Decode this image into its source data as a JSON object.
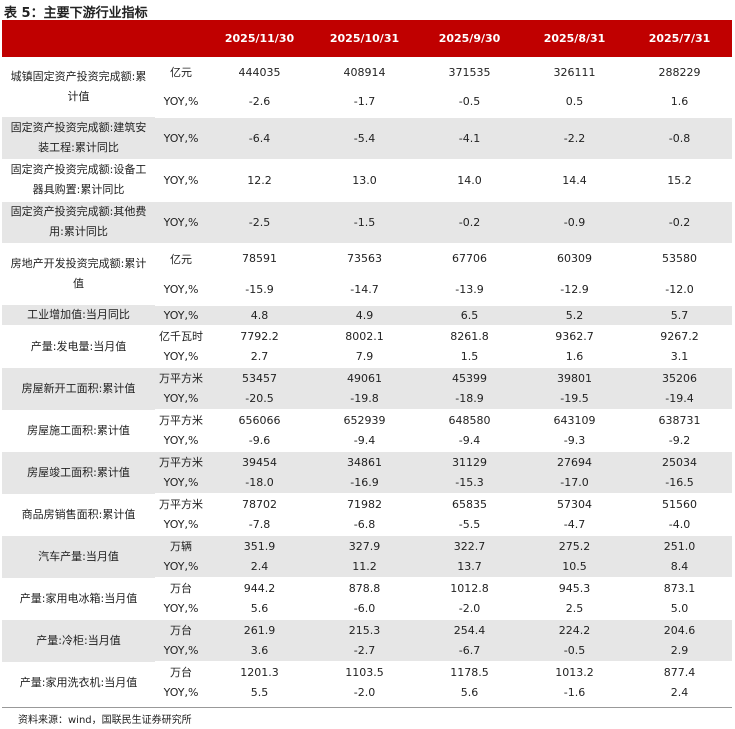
{
  "title": "表 5：主要下游行业指标",
  "table": {
    "columns": [
      "2025/11/30",
      "2025/10/31",
      "2025/9/30",
      "2025/8/31",
      "2025/7/31"
    ],
    "groups": [
      {
        "name": "城镇固定资产投资完成额:累计值",
        "rows": [
          {
            "unit": "亿元",
            "values": [
              "444035",
              "408914",
              "371535",
              "326111",
              "288229"
            ]
          },
          {
            "unit": "YOY,%",
            "values": [
              "-2.6",
              "-1.7",
              "-0.5",
              "0.5",
              "1.6"
            ]
          }
        ]
      },
      {
        "name": "固定资产投资完成额:建筑安装工程:累计同比",
        "rows": [
          {
            "unit": "YOY,%",
            "values": [
              "-6.4",
              "-5.4",
              "-4.1",
              "-2.2",
              "-0.8"
            ]
          }
        ]
      },
      {
        "name": "固定资产投资完成额:设备工器具购置:累计同比",
        "rows": [
          {
            "unit": "YOY,%",
            "values": [
              "12.2",
              "13.0",
              "14.0",
              "14.4",
              "15.2"
            ]
          }
        ]
      },
      {
        "name": "固定资产投资完成额:其他费用:累计同比",
        "rows": [
          {
            "unit": "YOY,%",
            "values": [
              "-2.5",
              "-1.5",
              "-0.2",
              "-0.9",
              "-0.2"
            ]
          }
        ]
      },
      {
        "name": "房地产开发投资完成额:累计值",
        "rows": [
          {
            "unit": "亿元",
            "values": [
              "78591",
              "73563",
              "67706",
              "60309",
              "53580"
            ]
          },
          {
            "unit": "YOY,%",
            "values": [
              "-15.9",
              "-14.7",
              "-13.9",
              "-12.9",
              "-12.0"
            ]
          }
        ]
      },
      {
        "name": "工业增加值:当月同比",
        "rows": [
          {
            "unit": "YOY,%",
            "values": [
              "4.8",
              "4.9",
              "6.5",
              "5.2",
              "5.7"
            ]
          }
        ]
      },
      {
        "name": "产量:发电量:当月值",
        "rows": [
          {
            "unit": "亿千瓦时",
            "values": [
              "7792.2",
              "8002.1",
              "8261.8",
              "9362.7",
              "9267.2"
            ]
          },
          {
            "unit": "YOY,%",
            "values": [
              "2.7",
              "7.9",
              "1.5",
              "1.6",
              "3.1"
            ]
          }
        ]
      },
      {
        "name": "房屋新开工面积:累计值",
        "rows": [
          {
            "unit": "万平方米",
            "values": [
              "53457",
              "49061",
              "45399",
              "39801",
              "35206"
            ]
          },
          {
            "unit": "YOY,%",
            "values": [
              "-20.5",
              "-19.8",
              "-18.9",
              "-19.5",
              "-19.4"
            ]
          }
        ]
      },
      {
        "name": "房屋施工面积:累计值",
        "rows": [
          {
            "unit": "万平方米",
            "values": [
              "656066",
              "652939",
              "648580",
              "643109",
              "638731"
            ]
          },
          {
            "unit": "YOY,%",
            "values": [
              "-9.6",
              "-9.4",
              "-9.4",
              "-9.3",
              "-9.2"
            ]
          }
        ]
      },
      {
        "name": "房屋竣工面积:累计值",
        "rows": [
          {
            "unit": "万平方米",
            "values": [
              "39454",
              "34861",
              "31129",
              "27694",
              "25034"
            ]
          },
          {
            "unit": "YOY,%",
            "values": [
              "-18.0",
              "-16.9",
              "-15.3",
              "-17.0",
              "-16.5"
            ]
          }
        ]
      },
      {
        "name": "商品房销售面积:累计值",
        "rows": [
          {
            "unit": "万平方米",
            "values": [
              "78702",
              "71982",
              "65835",
              "57304",
              "51560"
            ]
          },
          {
            "unit": "YOY,%",
            "values": [
              "-7.8",
              "-6.8",
              "-5.5",
              "-4.7",
              "-4.0"
            ]
          }
        ]
      },
      {
        "name": "汽车产量:当月值",
        "rows": [
          {
            "unit": "万辆",
            "values": [
              "351.9",
              "327.9",
              "322.7",
              "275.2",
              "251.0"
            ]
          },
          {
            "unit": "YOY,%",
            "values": [
              "2.4",
              "11.2",
              "13.7",
              "10.5",
              "8.4"
            ]
          }
        ]
      },
      {
        "name": "产量:家用电冰箱:当月值",
        "rows": [
          {
            "unit": "万台",
            "values": [
              "944.2",
              "878.8",
              "1012.8",
              "945.3",
              "873.1"
            ]
          },
          {
            "unit": "YOY,%",
            "values": [
              "5.6",
              "-6.0",
              "-2.0",
              "2.5",
              "5.0"
            ]
          }
        ]
      },
      {
        "name": "产量:冷柜:当月值",
        "rows": [
          {
            "unit": "万台",
            "values": [
              "261.9",
              "215.3",
              "254.4",
              "224.2",
              "204.6"
            ]
          },
          {
            "unit": "YOY,%",
            "values": [
              "3.6",
              "-2.7",
              "-6.7",
              "-0.5",
              "2.9"
            ]
          }
        ]
      },
      {
        "name": "产量:家用洗衣机:当月值",
        "rows": [
          {
            "unit": "万台",
            "values": [
              "1201.3",
              "1103.5",
              "1178.5",
              "1013.2",
              "877.4"
            ]
          },
          {
            "unit": "YOY,%",
            "values": [
              "5.5",
              "-2.0",
              "5.6",
              "-1.6",
              "2.4"
            ]
          }
        ]
      }
    ]
  },
  "source": "资料来源：wind，国联民生证券研究所"
}
